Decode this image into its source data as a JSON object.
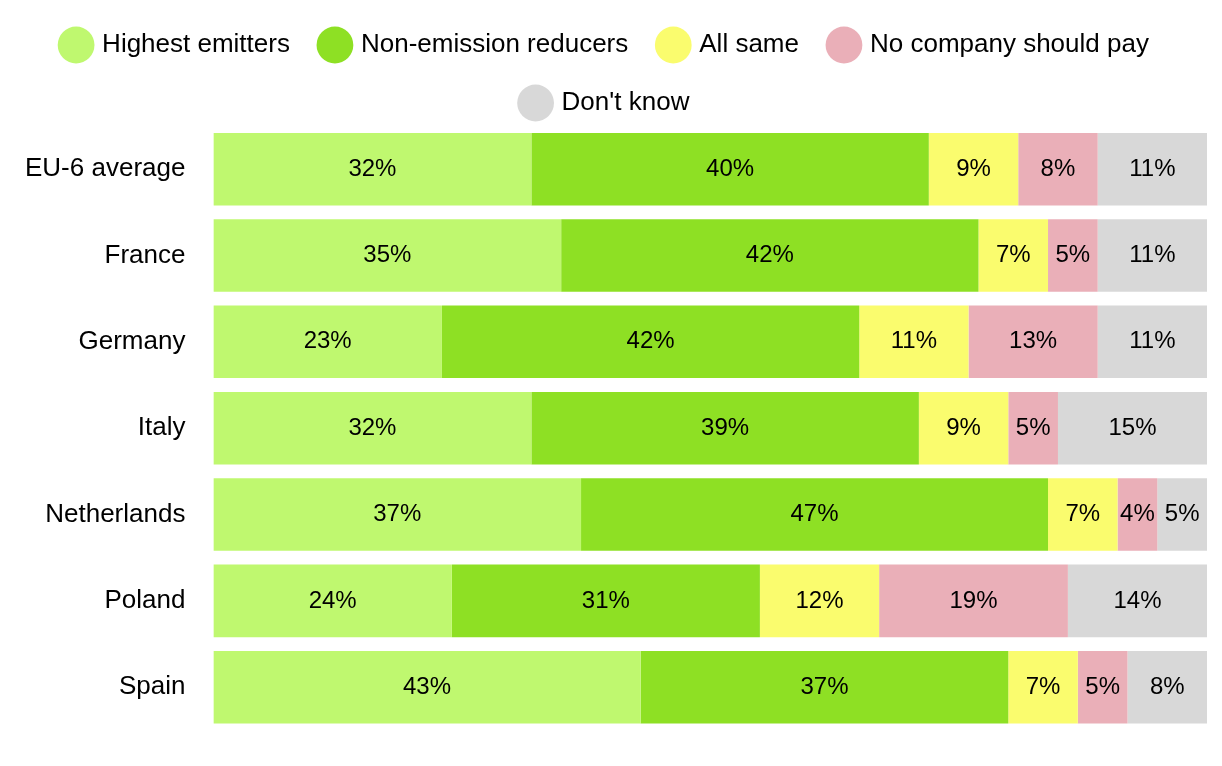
{
  "chart_data": {
    "type": "bar",
    "orientation": "horizontal",
    "stacked": true,
    "legend": "top",
    "tick_labels": "y",
    "grid": false,
    "xlim": [
      0,
      100
    ],
    "categories": [
      "EU-6 average",
      "France",
      "Germany",
      "Italy",
      "Netherlands",
      "Poland",
      "Spain"
    ],
    "series": [
      {
        "name": "Highest emitters",
        "color": "#bff86f",
        "values": [
          32,
          35,
          23,
          32,
          37,
          24,
          43
        ],
        "value_labels": [
          "32%",
          "35%",
          "23%",
          "32%",
          "37%",
          "24%",
          "43%"
        ]
      },
      {
        "name": "Non-emission reducers",
        "color": "#8ee024",
        "values": [
          40,
          42,
          42,
          39,
          47,
          31,
          37
        ],
        "value_labels": [
          "40%",
          "42%",
          "42%",
          "39%",
          "47%",
          "31%",
          "37%"
        ]
      },
      {
        "name": "All same",
        "color": "#fafc6e",
        "values": [
          9,
          7,
          11,
          9,
          7,
          12,
          7
        ],
        "value_labels": [
          "9%",
          "7%",
          "11%",
          "9%",
          "7%",
          "12%",
          "7%"
        ]
      },
      {
        "name": "No company should pay",
        "color": "#eaafb8",
        "values": [
          8,
          5,
          13,
          5,
          4,
          19,
          5
        ],
        "value_labels": [
          "8%",
          "5%",
          "13%",
          "5%",
          "4%",
          "19%",
          "5%"
        ]
      },
      {
        "name": "Don't know",
        "color": "#d8d8d8",
        "values": [
          11,
          11,
          11,
          15,
          5,
          14,
          8
        ],
        "value_labels": [
          "11%",
          "11%",
          "11%",
          "15%",
          "5%",
          "14%",
          "8%"
        ]
      }
    ]
  }
}
